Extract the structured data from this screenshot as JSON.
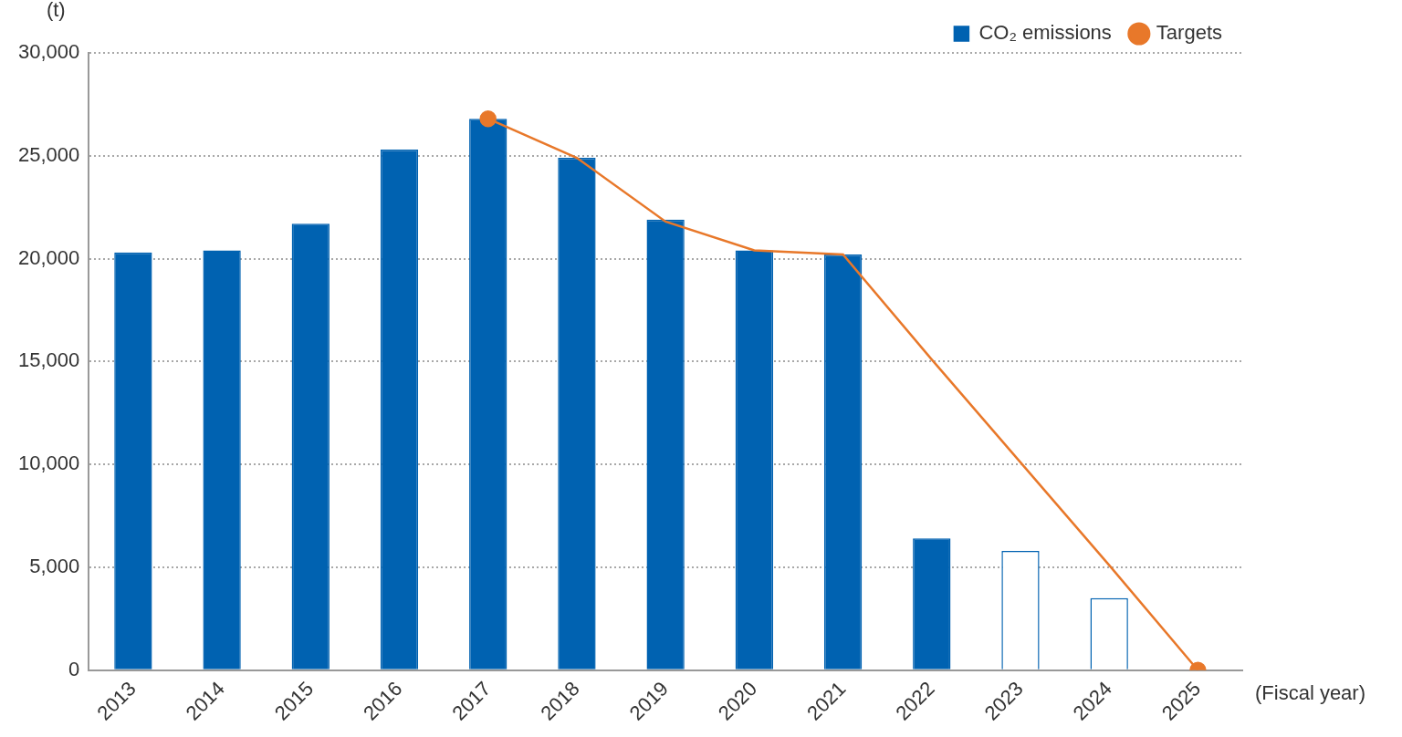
{
  "chart_data": {
    "type": "bar",
    "y_label": "(t)",
    "x_label": "(Fiscal year)",
    "categories": [
      "2013",
      "2014",
      "2015",
      "2016",
      "2017",
      "2018",
      "2019",
      "2020",
      "2021",
      "2022",
      "2023",
      "2024",
      "2025"
    ],
    "series": [
      {
        "name": "CO₂ emissions",
        "type": "bar",
        "color": "#0062b1",
        "colors": [
          "#0062b1",
          "#0062b1",
          "#0062b1",
          "#0062b1",
          "#0062b1",
          "#0062b1",
          "#0062b1",
          "#0062b1",
          "#0062b1",
          "#0062b1",
          "#ffffff",
          "#ffffff",
          "#0062b1"
        ],
        "values": [
          20300,
          20400,
          21700,
          25300,
          26800,
          24900,
          21900,
          20400,
          20200,
          6400,
          5800,
          3500,
          null
        ]
      },
      {
        "name": "Targets",
        "type": "line",
        "color": "#e8782a",
        "marker": "circle",
        "values": [
          null,
          null,
          null,
          null,
          26800,
          24900,
          21800,
          20400,
          20200,
          15100,
          10100,
          5100,
          0
        ]
      }
    ],
    "ylim": [
      0,
      30000
    ],
    "yticks": [
      0,
      {
        "value": 5000,
        "label": "5,000"
      },
      {
        "value": 10000,
        "label": "10,000"
      },
      {
        "value": 15000,
        "label": "15,000"
      },
      {
        "value": 20000,
        "label": "20,000"
      },
      {
        "value": 25000,
        "label": "25,000"
      },
      {
        "value": 30000,
        "label": "30,000"
      }
    ],
    "grid": true,
    "legend": "top right"
  }
}
